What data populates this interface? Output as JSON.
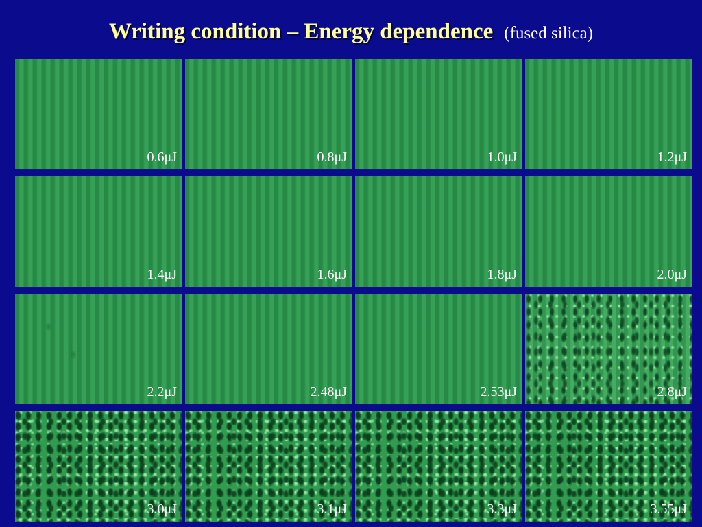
{
  "header": {
    "title": "Writing condition – Energy dependence",
    "subtitle": "(fused silica)"
  },
  "panels": [
    {
      "label": "0.6μJ"
    },
    {
      "label": "0.8μJ"
    },
    {
      "label": "1.0μJ"
    },
    {
      "label": "1.2μJ"
    },
    {
      "label": "1.4μJ"
    },
    {
      "label": "1.6μJ"
    },
    {
      "label": "1.8μJ"
    },
    {
      "label": "2.0μJ"
    },
    {
      "label": "2.2μJ"
    },
    {
      "label": "2.48μJ"
    },
    {
      "label": "2.53μJ"
    },
    {
      "label": "2.8μJ"
    },
    {
      "label": "3.0μJ"
    },
    {
      "label": "3.1μJ"
    },
    {
      "label": "3.3μJ"
    },
    {
      "label": "3.55μJ"
    }
  ]
}
